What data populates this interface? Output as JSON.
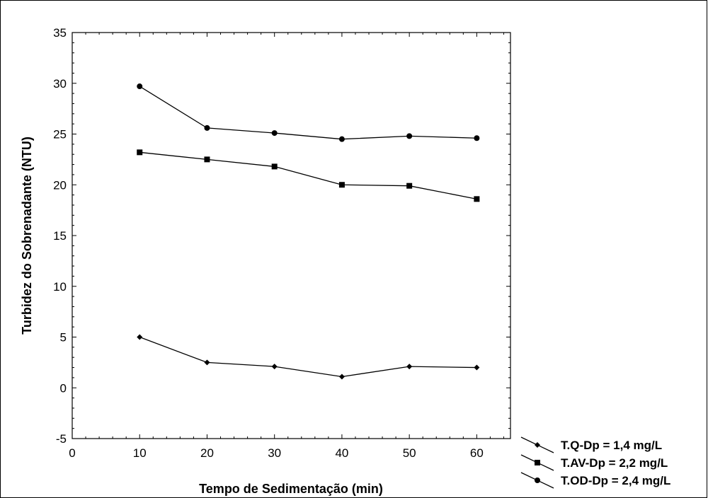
{
  "chart_data": {
    "type": "line",
    "title": "",
    "xlabel": "Tempo de Sedimentação (min)",
    "ylabel": "Turbidez do Sobrenadante (NTU)",
    "xlim": [
      0,
      65
    ],
    "ylim": [
      -5,
      35
    ],
    "xticks": [
      0,
      10,
      20,
      30,
      40,
      50,
      60
    ],
    "yticks": [
      -5,
      0,
      5,
      10,
      15,
      20,
      25,
      30,
      35
    ],
    "grid": false,
    "legend_position": "bottom-right",
    "x": [
      10,
      20,
      30,
      40,
      50,
      60
    ],
    "series": [
      {
        "name": "T.Q-Dp = 1,4 mg/L",
        "marker": "diamond",
        "values": [
          5.0,
          2.5,
          2.1,
          1.1,
          2.1,
          2.0
        ]
      },
      {
        "name": "T.AV-Dp = 2,2 mg/L",
        "marker": "square",
        "values": [
          23.2,
          22.5,
          21.8,
          20.0,
          19.9,
          18.6
        ]
      },
      {
        "name": "T.OD-Dp = 2,4 mg/L",
        "marker": "circle",
        "values": [
          29.7,
          25.6,
          25.1,
          24.5,
          24.8,
          24.6
        ]
      }
    ],
    "line_color": "#000000",
    "marker_color": "#000000"
  }
}
